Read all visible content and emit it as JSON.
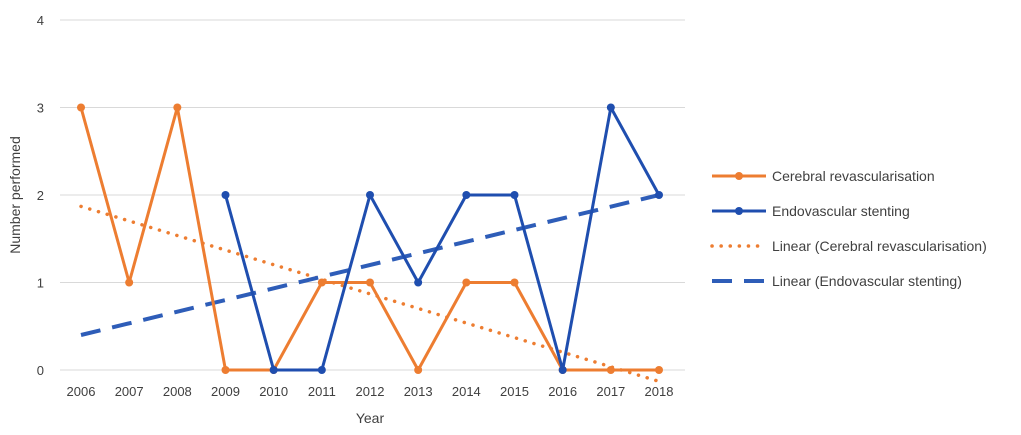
{
  "chart_data": {
    "type": "line",
    "xlabel": "Year",
    "ylabel": "Number performed",
    "ylim": [
      0,
      4
    ],
    "yticks": [
      "0",
      "1",
      "2",
      "3",
      "4"
    ],
    "categories": [
      "2006",
      "2007",
      "2008",
      "2009",
      "2010",
      "2011",
      "2012",
      "2013",
      "2014",
      "2015",
      "2016",
      "2017",
      "2018"
    ],
    "grid": "horizontal",
    "legend_position": "right",
    "series": [
      {
        "name": "Cerebral revascularisation",
        "color": "#ED7D31",
        "style": "solid",
        "values": [
          3,
          1,
          3,
          0,
          0,
          1,
          1,
          0,
          1,
          1,
          0,
          0,
          0
        ]
      },
      {
        "name": "Endovascular stenting",
        "color": "#1F4EAF",
        "style": "solid",
        "values": [
          null,
          null,
          null,
          2,
          0,
          0,
          2,
          1,
          2,
          2,
          0,
          3,
          2
        ]
      }
    ],
    "trendlines": [
      {
        "name": "Linear (Cerebral revascularisation)",
        "color": "#ED7D31",
        "style": "dotted",
        "start": [
          2006,
          1.87
        ],
        "end": [
          2018,
          -0.13
        ]
      },
      {
        "name": "Linear (Endovascular stenting)",
        "color": "#2E5DB8",
        "style": "dashed",
        "start": [
          2006,
          0.4
        ],
        "end": [
          2018,
          2.0
        ]
      }
    ]
  }
}
